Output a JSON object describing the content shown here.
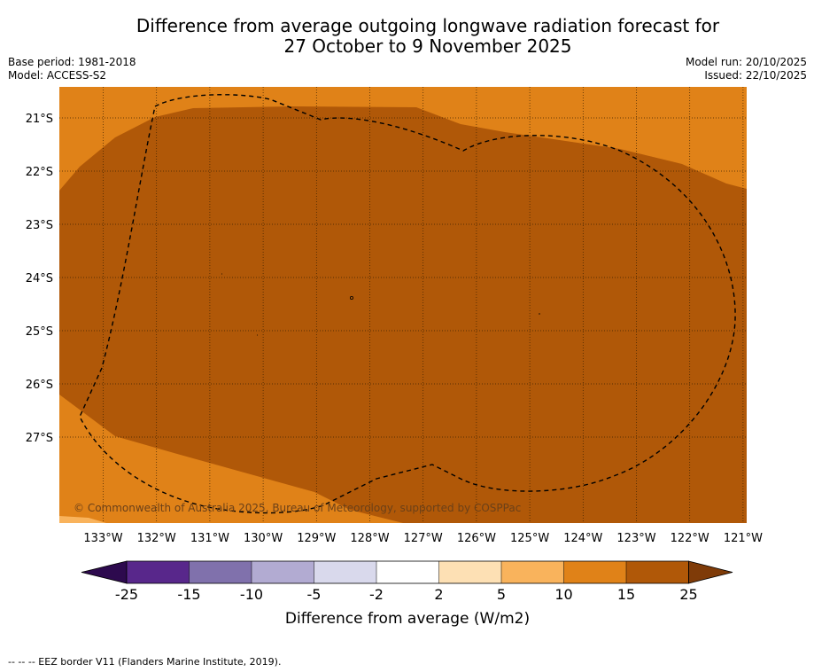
{
  "title": {
    "line1": "Difference from average outgoing longwave radiation forecast for",
    "line2": "27 October to 9 November 2025"
  },
  "meta": {
    "base_period": "Base period: 1981-2018",
    "model": "Model: ACCESS-S2",
    "model_run": "Model run: 20/10/2025",
    "issued": "Issued: 22/10/2025"
  },
  "map": {
    "copyright": "© Commonwealth of Australia 2025, Bureau of Meteorology, supported by COSPPac",
    "lon_labels": [
      "133°W",
      "132°W",
      "131°W",
      "130°W",
      "129°W",
      "128°W",
      "127°W",
      "126°W",
      "125°W",
      "124°W",
      "123°W",
      "122°W",
      "121°W"
    ],
    "lat_labels": [
      "21°S",
      "22°S",
      "23°S",
      "24°S",
      "25°S",
      "26°S",
      "27°S"
    ],
    "colors": {
      "band_10_15": "#e08218",
      "band_15_25": "#b05808",
      "band_5_10": "#f9b35c"
    }
  },
  "colorbar": {
    "ticks": [
      "-25",
      "-15",
      "-10",
      "-5",
      "-2",
      "2",
      "5",
      "10",
      "15",
      "25"
    ],
    "colors": [
      "#2d0a4e",
      "#58278b",
      "#8071ac",
      "#b2abd2",
      "#d9d9ec",
      "#ffffff",
      "#fde0b4",
      "#f9b35c",
      "#e08218",
      "#b05808",
      "#7f3b08"
    ],
    "label": "Difference from average (W/m2)"
  },
  "footer": "--  --  -- EEZ border V11 (Flanders Marine Institute, 2019)."
}
